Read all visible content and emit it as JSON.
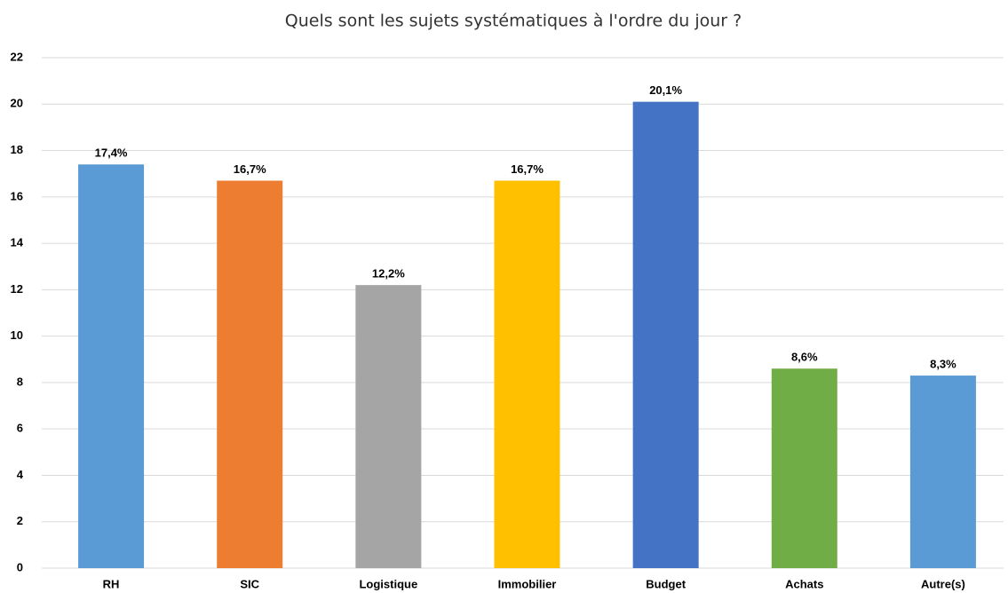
{
  "chart_data": {
    "type": "bar",
    "title": "Quels sont les sujets systématiques à l'ordre du jour ?",
    "categories": [
      "RH",
      "SIC",
      "Logistique",
      "Immobilier",
      "Budget",
      "Achats",
      "Autre(s)"
    ],
    "values": [
      17.4,
      16.7,
      12.2,
      16.7,
      20.1,
      8.6,
      8.3
    ],
    "value_labels": [
      "17,4%",
      "16,7%",
      "12,2%",
      "16,7%",
      "20,1%",
      "8,6%",
      "8,3%"
    ],
    "colors": [
      "#5b9bd5",
      "#ed7d31",
      "#a5a5a5",
      "#ffc000",
      "#4472c4",
      "#70ad47",
      "#5b9bd5"
    ],
    "ylim": [
      0,
      22
    ],
    "yticks": [
      0,
      2,
      4,
      6,
      8,
      10,
      12,
      14,
      16,
      18,
      20,
      22
    ],
    "grid": true
  }
}
